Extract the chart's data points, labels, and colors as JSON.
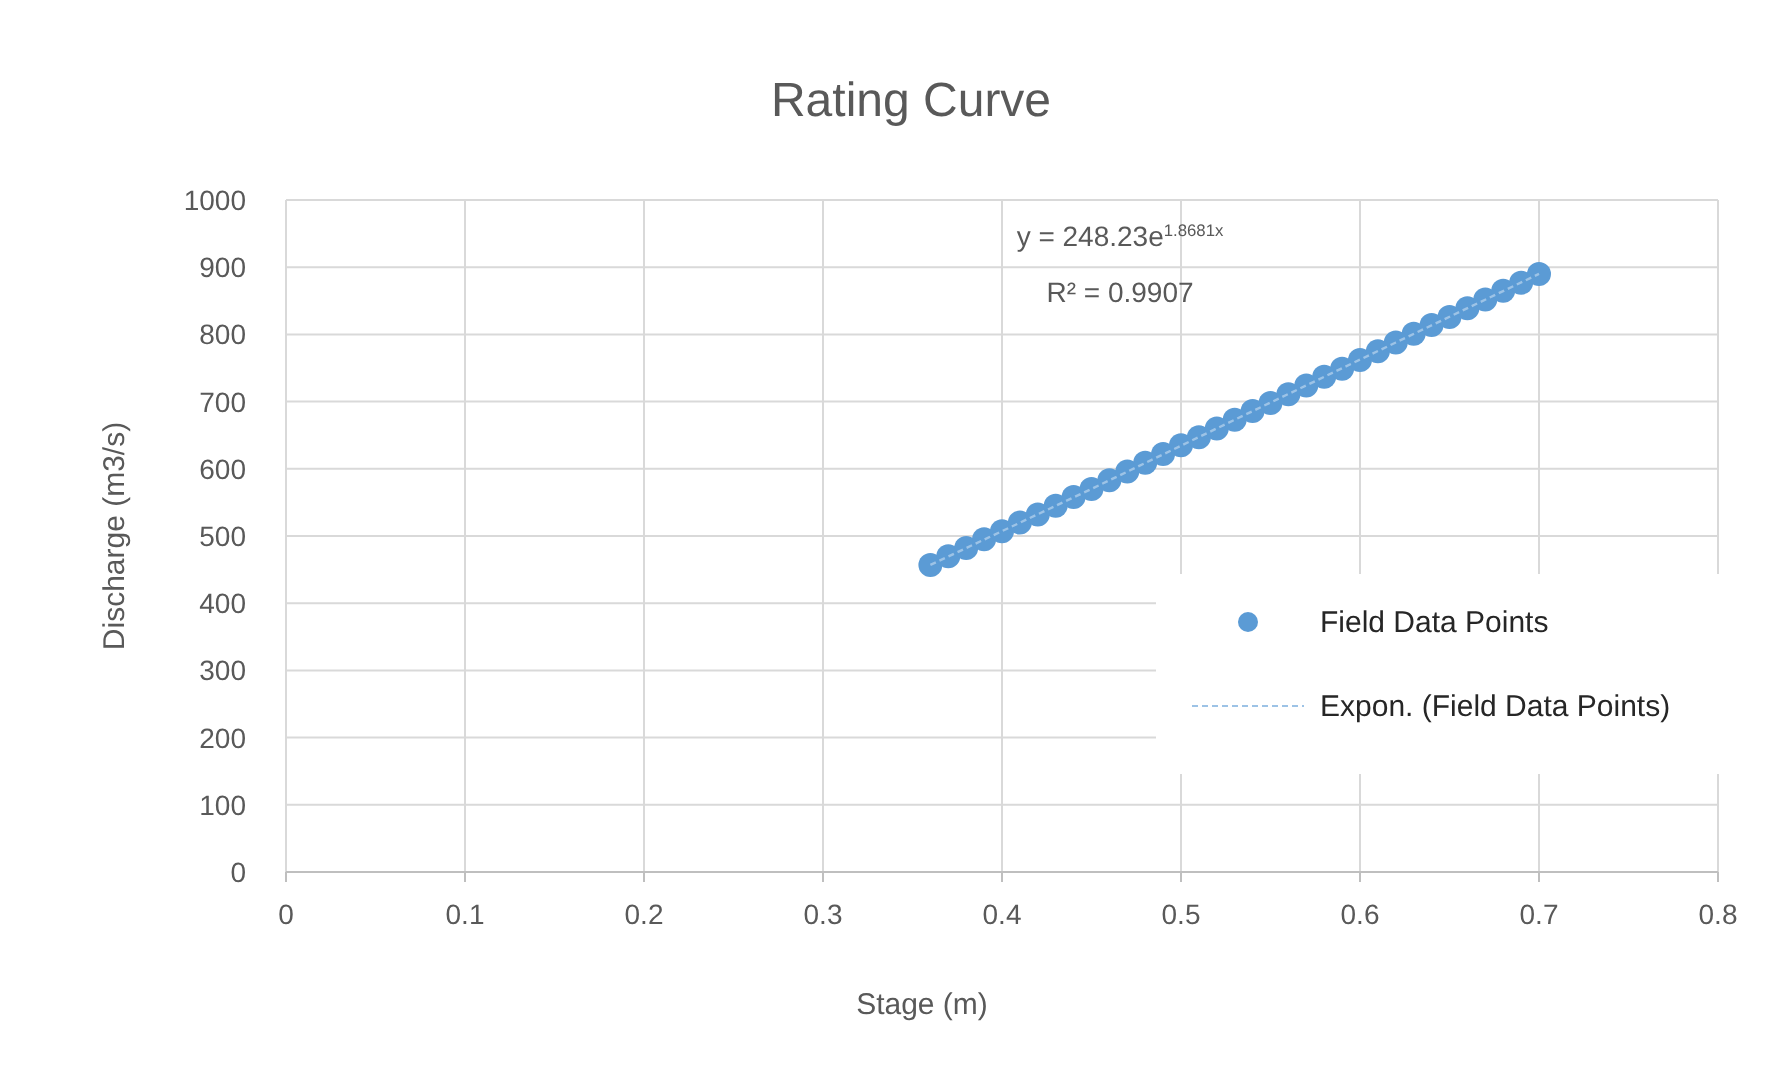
{
  "chart_data": {
    "type": "scatter",
    "title": "Rating Curve",
    "xlabel": "Stage (m)",
    "ylabel": "Discharge (m3/s)",
    "annotations": [
      "y = 248.23e$^{1.8681x}$",
      "R² = 0.9907"
    ],
    "xlim": [
      0,
      0.8
    ],
    "xticks": [
      0,
      0.1,
      0.2,
      0.3,
      0.4,
      0.5,
      0.6,
      0.7,
      0.8
    ],
    "ylim": [
      0,
      1000
    ],
    "yticks": [
      0,
      100,
      200,
      300,
      400,
      500,
      600,
      700,
      800,
      900,
      1000
    ],
    "grid": true,
    "legend": "right",
    "series": [
      {
        "name": "Field Data Points",
        "marker": "circle",
        "color": "#5b9bd5",
        "x": [
          0.36,
          0.37,
          0.38,
          0.39,
          0.4,
          0.41,
          0.42,
          0.43,
          0.44,
          0.45,
          0.46,
          0.47,
          0.48,
          0.49,
          0.5,
          0.51,
          0.52,
          0.53,
          0.54,
          0.55,
          0.56,
          0.57,
          0.58,
          0.59,
          0.6,
          0.61,
          0.62,
          0.63,
          0.64,
          0.65,
          0.66,
          0.67,
          0.68,
          0.69,
          0.7
        ],
        "values": [
          457,
          470,
          482,
          495,
          507,
          520,
          532,
          545,
          558,
          570,
          583,
          596,
          609,
          622,
          635,
          647,
          660,
          673,
          686,
          698,
          711,
          724,
          737,
          749,
          762,
          775,
          788,
          801,
          814,
          826,
          839,
          852,
          865,
          877,
          890
        ]
      },
      {
        "name": "Expon. (Field Data Points)",
        "type": "line",
        "marker": "none",
        "line_style": "dashed",
        "color": "#9dc3e6",
        "x": [
          0.36,
          0.45,
          0.53,
          0.62,
          0.7
        ],
        "values": [
          457,
          570,
          673,
          788,
          890
        ]
      }
    ]
  }
}
